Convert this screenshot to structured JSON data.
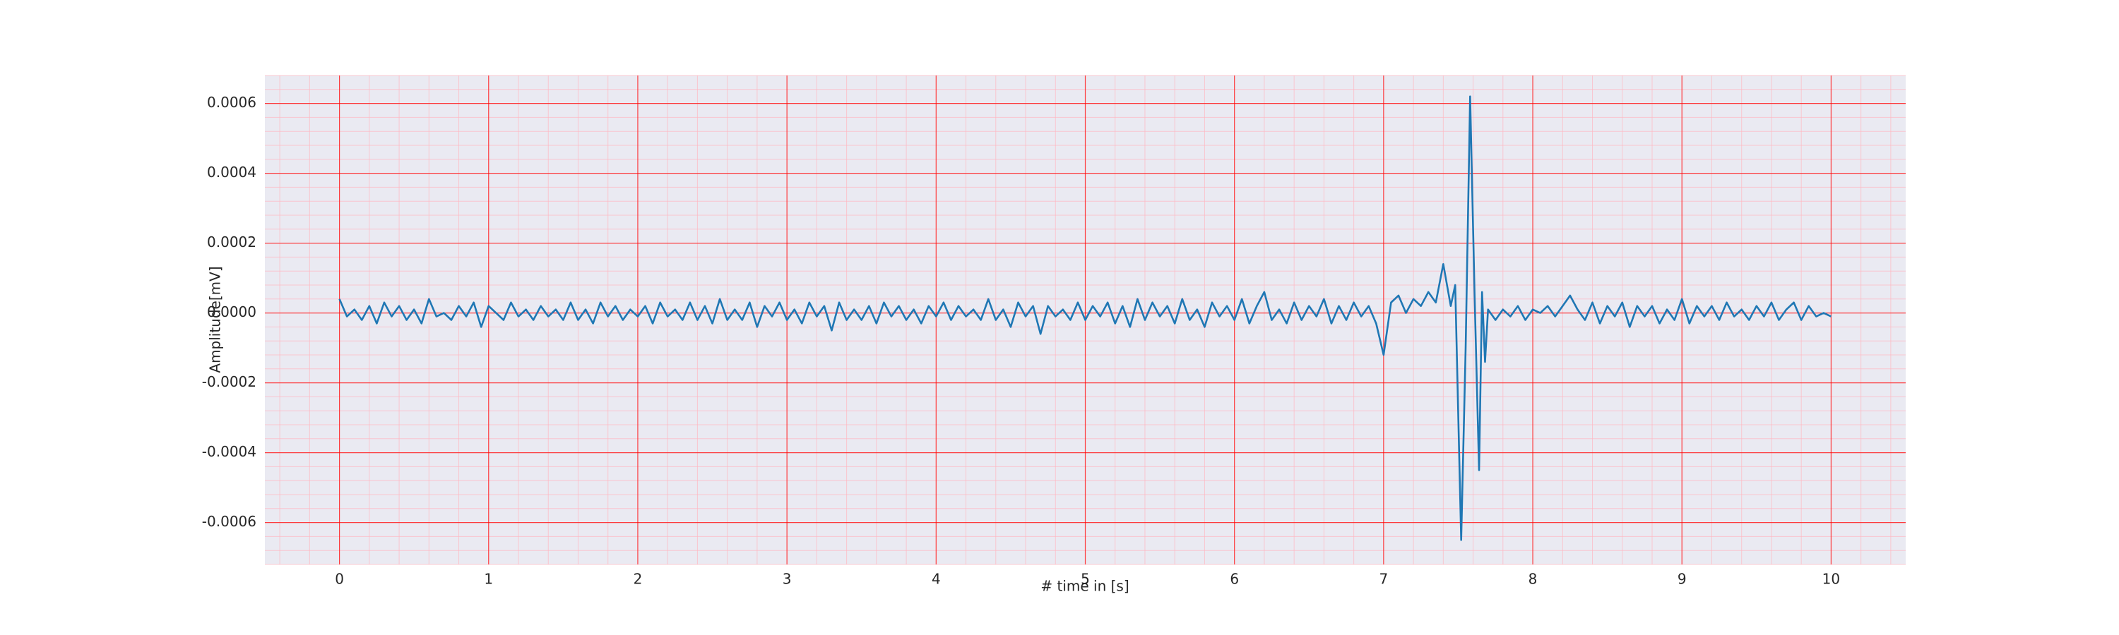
{
  "chart_data": {
    "type": "line",
    "xlabel": "# time in [s]",
    "ylabel": "Amplitude[mV]",
    "color": "#1f77b4",
    "grid": true,
    "minor_grid": true,
    "xlim": [
      -0.5,
      10.5
    ],
    "xticks": [
      0,
      1,
      2,
      3,
      4,
      5,
      6,
      7,
      8,
      9,
      10
    ],
    "ylim": [
      -0.00072,
      0.00068
    ],
    "yticks": [
      -0.0006,
      -0.0004,
      -0.0002,
      {
        "value": 0,
        "label": "0.0000"
      },
      0.0002,
      0.0004,
      0.0006
    ],
    "x": [
      0,
      0.05,
      0.1,
      0.15,
      0.2,
      0.25,
      0.3,
      0.35,
      0.4,
      0.45,
      0.5,
      0.55,
      0.6,
      0.65,
      0.7,
      0.75,
      0.8,
      0.85,
      0.9,
      0.95,
      1,
      1.05,
      1.1,
      1.15,
      1.2,
      1.25,
      1.3,
      1.35,
      1.4,
      1.45,
      1.5,
      1.55,
      1.6,
      1.65,
      1.7,
      1.75,
      1.8,
      1.85,
      1.9,
      1.95,
      2,
      2.05,
      2.1,
      2.15,
      2.2,
      2.25,
      2.3,
      2.35,
      2.4,
      2.45,
      2.5,
      2.55,
      2.6,
      2.65,
      2.7,
      2.75,
      2.8,
      2.85,
      2.9,
      2.95,
      3,
      3.05,
      3.1,
      3.15,
      3.2,
      3.25,
      3.3,
      3.35,
      3.4,
      3.45,
      3.5,
      3.55,
      3.6,
      3.65,
      3.7,
      3.75,
      3.8,
      3.85,
      3.9,
      3.95,
      4,
      4.05,
      4.1,
      4.15,
      4.2,
      4.25,
      4.3,
      4.35,
      4.4,
      4.45,
      4.5,
      4.55,
      4.6,
      4.65,
      4.7,
      4.75,
      4.8,
      4.85,
      4.9,
      4.95,
      5,
      5.05,
      5.1,
      5.15,
      5.2,
      5.25,
      5.3,
      5.35,
      5.4,
      5.45,
      5.5,
      5.55,
      5.6,
      5.65,
      5.7,
      5.75,
      5.8,
      5.85,
      5.9,
      5.95,
      6,
      6.05,
      6.1,
      6.15,
      6.2,
      6.25,
      6.3,
      6.35,
      6.4,
      6.45,
      6.5,
      6.55,
      6.6,
      6.65,
      6.7,
      6.75,
      6.8,
      6.85,
      6.9,
      6.95,
      7,
      7.05,
      7.1,
      7.15,
      7.2,
      7.25,
      7.3,
      7.35,
      7.4,
      7.45,
      7.48,
      7.52,
      7.55,
      7.58,
      7.61,
      7.64,
      7.66,
      7.68,
      7.7,
      7.75,
      7.8,
      7.85,
      7.9,
      7.95,
      8,
      8.05,
      8.1,
      8.15,
      8.2,
      8.25,
      8.3,
      8.35,
      8.4,
      8.45,
      8.5,
      8.55,
      8.6,
      8.65,
      8.7,
      8.75,
      8.8,
      8.85,
      8.9,
      8.95,
      9,
      9.05,
      9.1,
      9.15,
      9.2,
      9.25,
      9.3,
      9.35,
      9.4,
      9.45,
      9.5,
      9.55,
      9.6,
      9.65,
      9.7,
      9.75,
      9.8,
      9.85,
      9.9,
      9.95,
      10
    ],
    "values": [
      4e-05,
      -1e-05,
      1e-05,
      -2e-05,
      2e-05,
      -3e-05,
      3e-05,
      -1e-05,
      2e-05,
      -2e-05,
      1e-05,
      -3e-05,
      4e-05,
      -1e-05,
      0,
      -2e-05,
      2e-05,
      -1e-05,
      3e-05,
      -4e-05,
      2e-05,
      0,
      -2e-05,
      3e-05,
      -1e-05,
      1e-05,
      -2e-05,
      2e-05,
      -1e-05,
      1e-05,
      -2e-05,
      3e-05,
      -2e-05,
      1e-05,
      -3e-05,
      3e-05,
      -1e-05,
      2e-05,
      -2e-05,
      1e-05,
      -1e-05,
      2e-05,
      -3e-05,
      3e-05,
      -1e-05,
      1e-05,
      -2e-05,
      3e-05,
      -2e-05,
      2e-05,
      -3e-05,
      4e-05,
      -2e-05,
      1e-05,
      -2e-05,
      3e-05,
      -4e-05,
      2e-05,
      -1e-05,
      3e-05,
      -2e-05,
      1e-05,
      -3e-05,
      3e-05,
      -1e-05,
      2e-05,
      -5e-05,
      3e-05,
      -2e-05,
      1e-05,
      -2e-05,
      2e-05,
      -3e-05,
      3e-05,
      -1e-05,
      2e-05,
      -2e-05,
      1e-05,
      -3e-05,
      2e-05,
      -1e-05,
      3e-05,
      -2e-05,
      2e-05,
      -1e-05,
      1e-05,
      -2e-05,
      4e-05,
      -2e-05,
      1e-05,
      -4e-05,
      3e-05,
      -1e-05,
      2e-05,
      -6e-05,
      2e-05,
      -1e-05,
      1e-05,
      -2e-05,
      3e-05,
      -2e-05,
      2e-05,
      -1e-05,
      3e-05,
      -3e-05,
      2e-05,
      -4e-05,
      4e-05,
      -2e-05,
      3e-05,
      -1e-05,
      2e-05,
      -3e-05,
      4e-05,
      -2e-05,
      1e-05,
      -4e-05,
      3e-05,
      -1e-05,
      2e-05,
      -2e-05,
      4e-05,
      -3e-05,
      2e-05,
      6e-05,
      -2e-05,
      1e-05,
      -3e-05,
      3e-05,
      -2e-05,
      2e-05,
      -1e-05,
      4e-05,
      -3e-05,
      2e-05,
      -2e-05,
      3e-05,
      -1e-05,
      2e-05,
      -3e-05,
      -0.00012,
      3e-05,
      5e-05,
      0,
      4e-05,
      2e-05,
      6e-05,
      3e-05,
      0.00014,
      2e-05,
      8e-05,
      -0.00065,
      -0.0001,
      0.00062,
      5e-05,
      -0.00045,
      6e-05,
      -0.00014,
      1e-05,
      -2e-05,
      1e-05,
      -1e-05,
      2e-05,
      -2e-05,
      1e-05,
      0,
      2e-05,
      -1e-05,
      2e-05,
      5e-05,
      1e-05,
      -2e-05,
      3e-05,
      -3e-05,
      2e-05,
      -1e-05,
      3e-05,
      -4e-05,
      2e-05,
      -1e-05,
      2e-05,
      -3e-05,
      1e-05,
      -2e-05,
      4e-05,
      -3e-05,
      2e-05,
      -1e-05,
      2e-05,
      -2e-05,
      3e-05,
      -1e-05,
      1e-05,
      -2e-05,
      2e-05,
      -1e-05,
      3e-05,
      -2e-05,
      1e-05,
      3e-05,
      -2e-05,
      2e-05,
      -1e-05,
      0,
      -1e-05
    ]
  }
}
